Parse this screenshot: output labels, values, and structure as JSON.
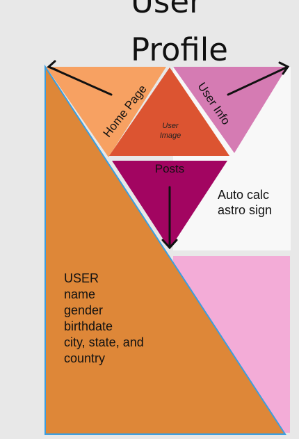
{
  "title": {
    "line1": "User",
    "line2": "Profile"
  },
  "regions": {
    "home_page": {
      "label": "Home Page",
      "color": "#f7a162"
    },
    "user_image": {
      "label_line1": "User",
      "label_line2": "Image",
      "color": "#dc5431"
    },
    "user_info": {
      "label": "User Info",
      "color": "#d57bb3"
    },
    "posts": {
      "label": "Posts",
      "color": "#a20561"
    },
    "astro": {
      "line1": "Auto calc",
      "line2": "astro sign",
      "color": "#f8f8f8"
    },
    "user_box": {
      "lines": [
        "USER",
        "name",
        "gender",
        "birthdate",
        "city, state, and",
        "country"
      ],
      "color": "#de8738",
      "border_color": "#3a9ee0"
    },
    "pink_panel": {
      "color": "#f3acd7"
    }
  }
}
